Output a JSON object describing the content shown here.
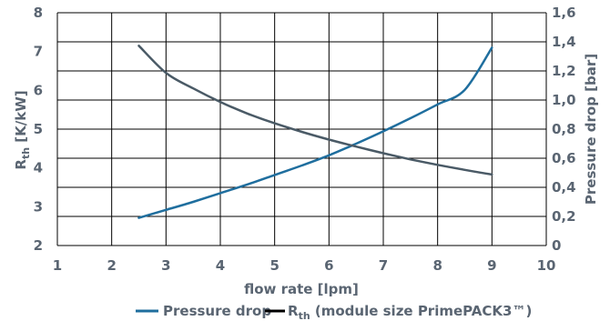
{
  "chart_data": {
    "type": "line",
    "xlabel": "flow rate [lpm]",
    "ylabel_left": {
      "main": "R",
      "sub": "th",
      "rest": " [K/kW]"
    },
    "ylabel_right": "Pressure drop [bar]",
    "xlim": [
      1,
      10
    ],
    "ylim_left": [
      2,
      8
    ],
    "ylim_right": [
      0,
      1.6
    ],
    "x_ticks": [
      "1",
      "2",
      "3",
      "4",
      "5",
      "6",
      "7",
      "8",
      "9",
      "10"
    ],
    "y_left_ticks": [
      "2",
      "3",
      "4",
      "5",
      "6",
      "7",
      "8"
    ],
    "y_right_ticks": [
      "0",
      "0,2",
      "0,4",
      "0,6",
      "0,8",
      "1,0",
      "1,2",
      "1,4",
      "1,6"
    ],
    "grid": true,
    "legend_position": "bottom",
    "series": [
      {
        "name": "Pressure drop",
        "axis": "right",
        "color": "#1f6e9e",
        "x": [
          2.5,
          3,
          3.5,
          4,
          4.5,
          5,
          5.5,
          6,
          6.5,
          7,
          7.5,
          8,
          8.5,
          9
        ],
        "y": [
          0.19,
          0.245,
          0.3,
          0.36,
          0.42,
          0.485,
          0.55,
          0.62,
          0.7,
          0.785,
          0.875,
          0.97,
          1.07,
          1.36
        ]
      },
      {
        "name_main": "R",
        "name_sub": "th",
        "name_rest": " (module size PrimePACK3™)",
        "axis": "left",
        "color": "#4a5a66",
        "x": [
          2.5,
          3,
          3.5,
          4,
          4.5,
          5,
          5.5,
          6,
          6.5,
          7,
          7.5,
          8,
          8.5,
          9
        ],
        "y": [
          7.15,
          6.45,
          6.05,
          5.7,
          5.4,
          5.15,
          4.93,
          4.73,
          4.55,
          4.38,
          4.22,
          4.08,
          3.95,
          3.83
        ]
      }
    ]
  }
}
